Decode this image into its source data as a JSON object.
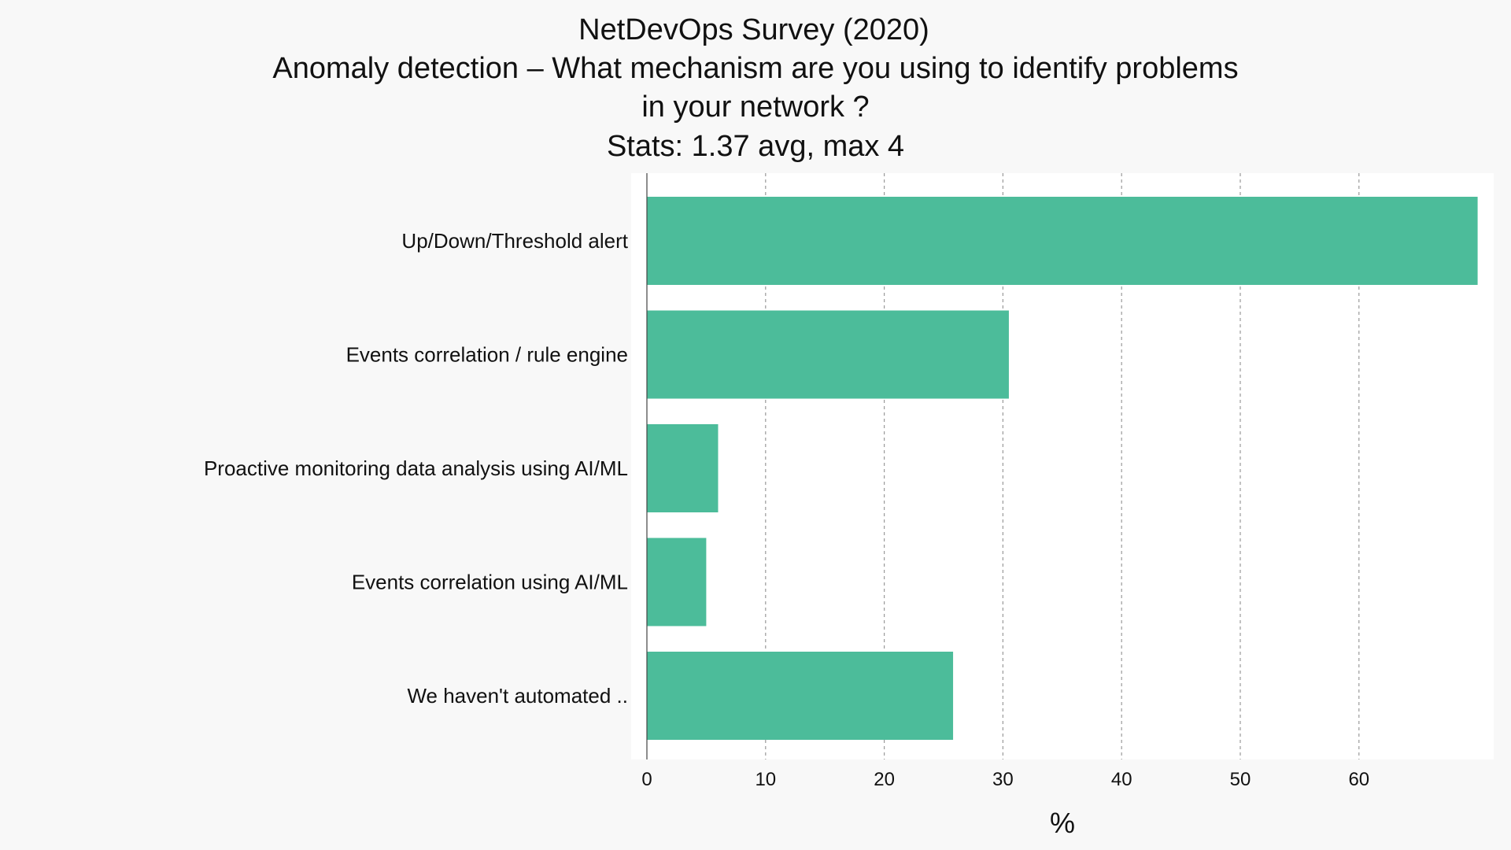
{
  "chart_data": {
    "type": "bar",
    "orientation": "horizontal",
    "title_lines": [
      "NetDevOps Survey (2020)",
      "Anomaly detection – What mechanism are you using to identify problems",
      "in your network ?",
      "Stats: 1.37 avg, max 4"
    ],
    "categories": [
      "Up/Down/Threshold alert",
      "Events correlation / rule engine",
      "Proactive monitoring data analysis using AI/ML",
      "Events correlation using AI/ML",
      "We haven't automated .."
    ],
    "values": [
      70,
      30.5,
      6,
      5,
      25.8
    ],
    "xlabel": "%",
    "ylabel": "",
    "xlim": [
      0,
      71.5
    ],
    "xticks": [
      "0",
      "10",
      "20",
      "30",
      "40",
      "50",
      "60"
    ],
    "grid": "vertical dashed",
    "bar_color": "#4cbc9a",
    "plot_background": "#ffffff",
    "page_background": "#f8f8f8"
  }
}
